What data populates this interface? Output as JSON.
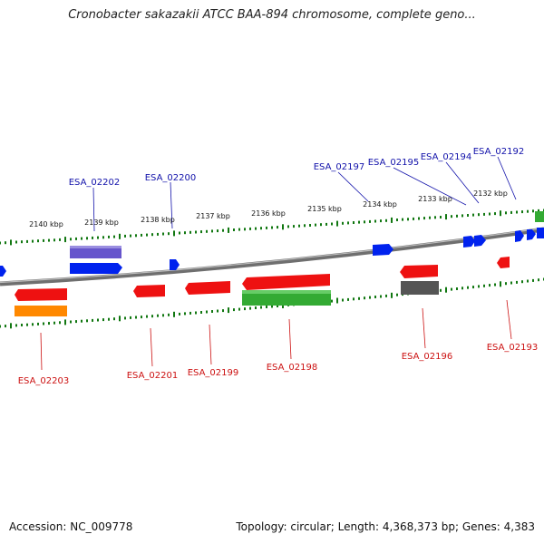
{
  "title": "Cronobacter sakazakii ATCC BAA-894 chromosome, complete geno...",
  "footer": {
    "accession": "Accession: NC_009778",
    "summary": "Topology: circular; Length: 4,368,373 bp; Genes: 4,383"
  },
  "colors": {
    "backbone": "#888888",
    "forward_label": "#1111aa",
    "reverse_label": "#cc1111",
    "forward_cds": "#0022ee",
    "reverse_cds": "#ee1111",
    "rrna_green": "#33aa33",
    "orange": "#ff8800",
    "purple": "#6655cc",
    "dark_gray": "#555555",
    "tick_green": "#117711"
  },
  "kbp_ticks": [
    "2140 kbp",
    "2139 kbp",
    "2138 kbp",
    "2137 kbp",
    "2136 kbp",
    "2135 kbp",
    "2134 kbp",
    "2133 kbp",
    "2132 kbp"
  ],
  "forward_genes": [
    "ESA_02202",
    "ESA_02200",
    "ESA_02197",
    "ESA_02195",
    "ESA_02194",
    "ESA_02192"
  ],
  "reverse_genes": [
    "ESA_02203",
    "ESA_02201",
    "ESA_02199",
    "ESA_02198",
    "ESA_02196",
    "ESA_02193"
  ]
}
